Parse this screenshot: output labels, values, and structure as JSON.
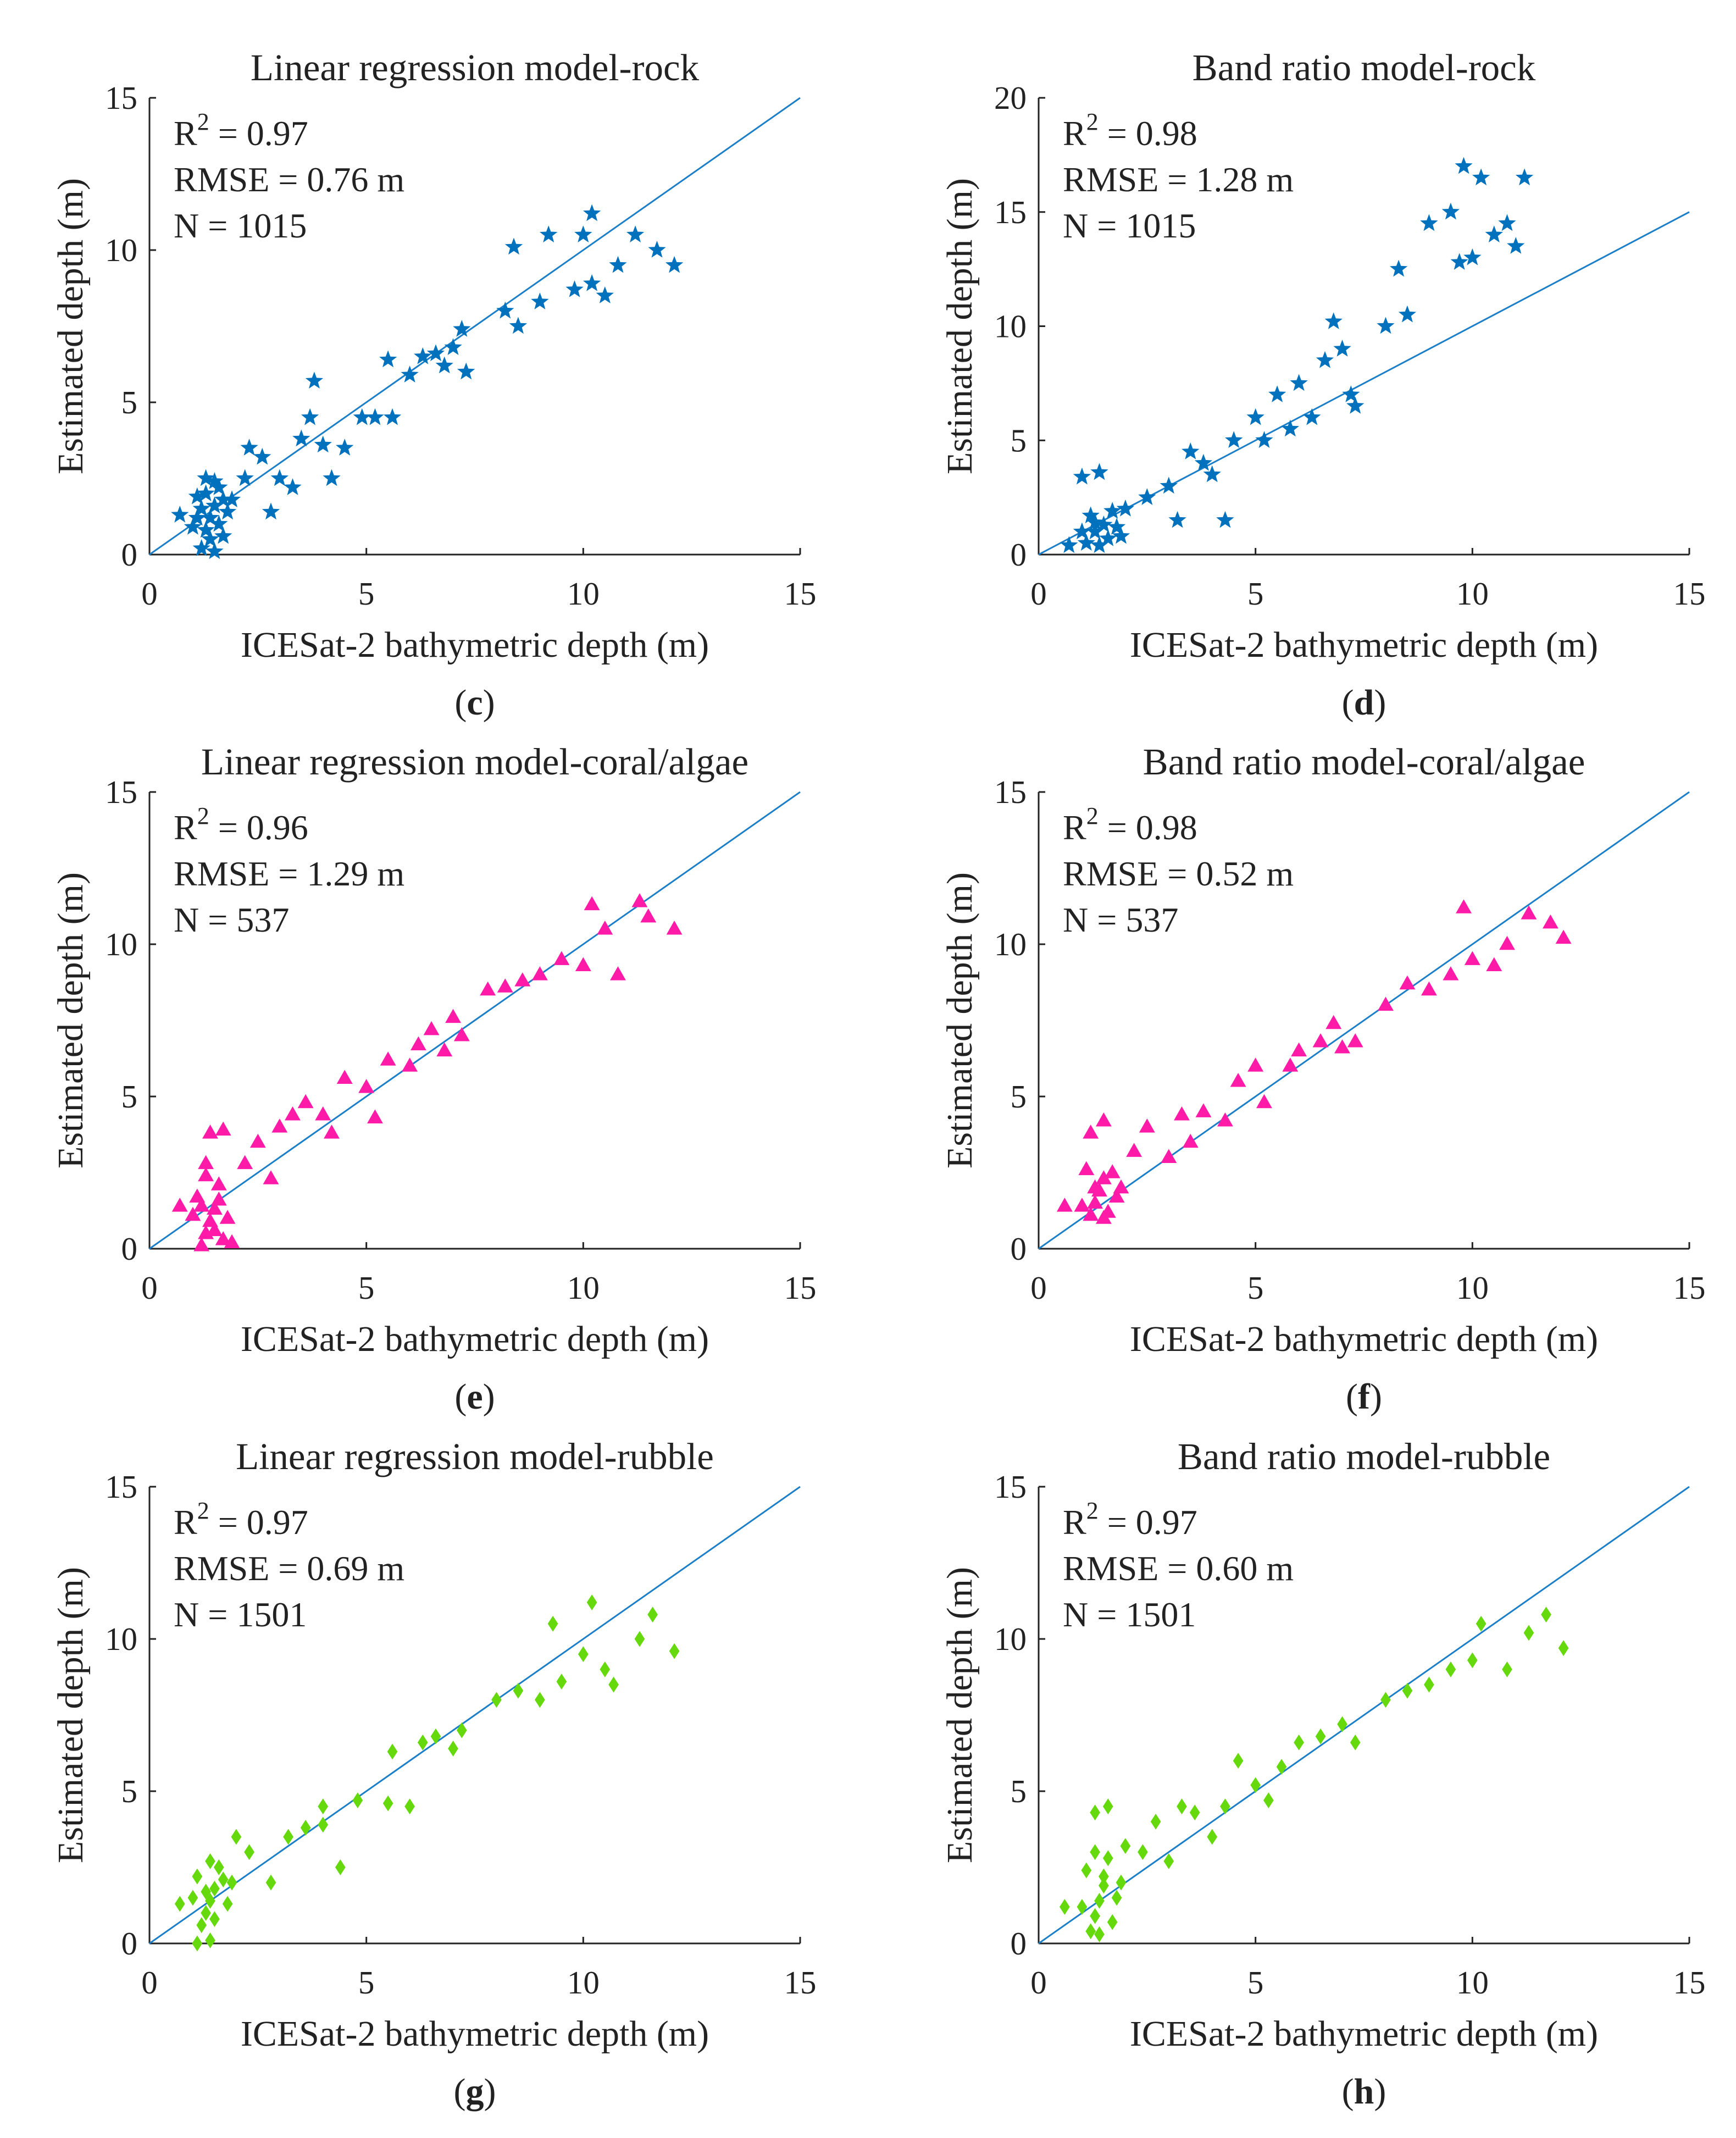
{
  "chart_data": [
    {
      "type": "scatter",
      "panel_label": "c",
      "title": "Linear regression model-rock",
      "xlabel": "ICESat-2 bathymetric depth (m)",
      "ylabel": "Estimated depth (m)",
      "xlim": [
        0,
        15
      ],
      "ylim": [
        0,
        15
      ],
      "xticks": [
        0,
        5,
        10,
        15
      ],
      "yticks": [
        0,
        5,
        10,
        15
      ],
      "stats": {
        "r2": "0.97",
        "rmse": "RMSE = 0.76 m",
        "n": "N = 1015"
      },
      "marker": "star",
      "color": "#0072BD",
      "reference_line": "1:1",
      "points": [
        [
          1.2,
          0.2
        ],
        [
          1.3,
          0.8
        ],
        [
          1.4,
          1.2
        ],
        [
          1.5,
          1.6
        ],
        [
          1.1,
          1.9
        ],
        [
          1.6,
          2.2
        ],
        [
          1.3,
          2.5
        ],
        [
          1.8,
          1.4
        ],
        [
          1.7,
          0.6
        ],
        [
          0.7,
          1.3
        ],
        [
          1.9,
          1.8
        ],
        [
          1.5,
          0.1
        ],
        [
          1.2,
          1.5
        ],
        [
          1.0,
          0.9
        ],
        [
          1.4,
          0.5
        ],
        [
          1.6,
          1.0
        ],
        [
          1.3,
          2.0
        ],
        [
          1.1,
          1.2
        ],
        [
          1.7,
          1.8
        ],
        [
          1.5,
          2.4
        ],
        [
          2.3,
          3.5
        ],
        [
          2.2,
          2.5
        ],
        [
          2.6,
          3.2
        ],
        [
          2.8,
          1.4
        ],
        [
          3.0,
          2.5
        ],
        [
          3.3,
          2.2
        ],
        [
          3.5,
          3.8
        ],
        [
          3.7,
          4.5
        ],
        [
          4.0,
          3.6
        ],
        [
          4.2,
          2.5
        ],
        [
          3.8,
          5.7
        ],
        [
          4.5,
          3.5
        ],
        [
          4.9,
          4.5
        ],
        [
          5.2,
          4.5
        ],
        [
          5.6,
          4.5
        ],
        [
          5.5,
          6.4
        ],
        [
          6.0,
          5.9
        ],
        [
          6.3,
          6.5
        ],
        [
          6.6,
          6.6
        ],
        [
          6.8,
          6.2
        ],
        [
          7.0,
          6.8
        ],
        [
          7.2,
          7.4
        ],
        [
          7.3,
          6.0
        ],
        [
          8.2,
          8.0
        ],
        [
          8.5,
          7.5
        ],
        [
          9.0,
          8.3
        ],
        [
          9.2,
          10.5
        ],
        [
          8.4,
          10.1
        ],
        [
          9.8,
          8.7
        ],
        [
          10.2,
          8.9
        ],
        [
          10.5,
          8.5
        ],
        [
          10.8,
          9.5
        ],
        [
          10.2,
          11.2
        ],
        [
          11.2,
          10.5
        ],
        [
          11.7,
          10.0
        ],
        [
          12.1,
          9.5
        ],
        [
          10.0,
          10.5
        ]
      ]
    },
    {
      "type": "scatter",
      "panel_label": "d",
      "title": "Band ratio model-rock",
      "xlabel": "ICESat-2 bathymetric depth (m)",
      "ylabel": "Estimated depth (m)",
      "xlim": [
        0,
        15
      ],
      "ylim": [
        0,
        20
      ],
      "xticks": [
        0,
        5,
        10,
        15
      ],
      "yticks": [
        0,
        5,
        10,
        15,
        20
      ],
      "stats": {
        "r2": "0.98",
        "rmse": "RMSE = 1.28 m",
        "n": "N = 1015"
      },
      "marker": "star",
      "color": "#0072BD",
      "reference_line": "1:1",
      "points": [
        [
          0.7,
          0.4
        ],
        [
          1.1,
          0.5
        ],
        [
          1.3,
          1.0
        ],
        [
          1.5,
          1.3
        ],
        [
          1.2,
          1.7
        ],
        [
          1.8,
          1.2
        ],
        [
          1.6,
          0.7
        ],
        [
          1.4,
          0.4
        ],
        [
          1.0,
          1.0
        ],
        [
          1.7,
          1.9
        ],
        [
          1.3,
          1.4
        ],
        [
          1.9,
          0.8
        ],
        [
          1.0,
          3.4
        ],
        [
          1.4,
          3.6
        ],
        [
          2.0,
          2.0
        ],
        [
          2.5,
          2.5
        ],
        [
          3.0,
          3.0
        ],
        [
          3.2,
          1.5
        ],
        [
          3.5,
          4.5
        ],
        [
          3.8,
          4.0
        ],
        [
          4.0,
          3.5
        ],
        [
          4.3,
          1.5
        ],
        [
          4.5,
          5.0
        ],
        [
          5.0,
          6.0
        ],
        [
          5.2,
          5.0
        ],
        [
          5.5,
          7.0
        ],
        [
          6.0,
          7.5
        ],
        [
          6.3,
          6.0
        ],
        [
          6.6,
          8.5
        ],
        [
          6.8,
          10.2
        ],
        [
          7.0,
          9.0
        ],
        [
          7.2,
          7.0
        ],
        [
          7.3,
          6.5
        ],
        [
          5.8,
          5.5
        ],
        [
          8.0,
          10.0
        ],
        [
          8.3,
          12.5
        ],
        [
          8.5,
          10.5
        ],
        [
          9.0,
          14.5
        ],
        [
          9.5,
          15.0
        ],
        [
          9.8,
          17.0
        ],
        [
          10.0,
          13.0
        ],
        [
          10.2,
          16.5
        ],
        [
          10.5,
          14.0
        ],
        [
          10.8,
          14.5
        ],
        [
          11.0,
          13.5
        ],
        [
          11.2,
          16.5
        ],
        [
          9.7,
          12.8
        ]
      ]
    },
    {
      "type": "scatter",
      "panel_label": "e",
      "title": "Linear regression model-coral/algae",
      "xlabel": "ICESat-2 bathymetric depth (m)",
      "ylabel": "Estimated depth (m)",
      "xlim": [
        0,
        15
      ],
      "ylim": [
        0,
        15
      ],
      "xticks": [
        0,
        5,
        10,
        15
      ],
      "yticks": [
        0,
        5,
        10,
        15
      ],
      "stats": {
        "r2": "0.96",
        "rmse": "RMSE = 1.29 m",
        "n": "N = 537"
      },
      "marker": "triangle",
      "color": "#FF1AA8",
      "reference_line": "1:1",
      "points": [
        [
          1.2,
          0.1
        ],
        [
          1.3,
          0.5
        ],
        [
          1.4,
          0.9
        ],
        [
          1.5,
          1.3
        ],
        [
          1.1,
          1.7
        ],
        [
          1.6,
          2.1
        ],
        [
          1.3,
          2.4
        ],
        [
          1.8,
          1.0
        ],
        [
          1.7,
          0.3
        ],
        [
          1.0,
          1.1
        ],
        [
          1.5,
          0.6
        ],
        [
          1.2,
          1.4
        ],
        [
          1.9,
          0.2
        ],
        [
          1.6,
          1.6
        ],
        [
          1.3,
          2.8
        ],
        [
          1.4,
          3.8
        ],
        [
          1.7,
          3.9
        ],
        [
          0.7,
          1.4
        ],
        [
          2.2,
          2.8
        ],
        [
          2.5,
          3.5
        ],
        [
          2.8,
          2.3
        ],
        [
          3.0,
          4.0
        ],
        [
          3.3,
          4.4
        ],
        [
          3.6,
          4.8
        ],
        [
          4.0,
          4.4
        ],
        [
          4.2,
          3.8
        ],
        [
          4.5,
          5.6
        ],
        [
          5.0,
          5.3
        ],
        [
          5.2,
          4.3
        ],
        [
          5.5,
          6.2
        ],
        [
          6.0,
          6.0
        ],
        [
          6.2,
          6.7
        ],
        [
          6.5,
          7.2
        ],
        [
          6.8,
          6.5
        ],
        [
          7.0,
          7.6
        ],
        [
          7.2,
          7.0
        ],
        [
          7.8,
          8.5
        ],
        [
          8.2,
          8.6
        ],
        [
          8.6,
          8.8
        ],
        [
          9.0,
          9.0
        ],
        [
          9.5,
          9.5
        ],
        [
          10.0,
          9.3
        ],
        [
          10.5,
          10.5
        ],
        [
          10.8,
          9.0
        ],
        [
          10.2,
          11.3
        ],
        [
          11.3,
          11.4
        ],
        [
          11.5,
          10.9
        ],
        [
          12.1,
          10.5
        ]
      ]
    },
    {
      "type": "scatter",
      "panel_label": "f",
      "title": "Band ratio model-coral/algae",
      "xlabel": "ICESat-2 bathymetric depth (m)",
      "ylabel": "Estimated depth (m)",
      "xlim": [
        0,
        15
      ],
      "ylim": [
        0,
        15
      ],
      "xticks": [
        0,
        5,
        10,
        15
      ],
      "yticks": [
        0,
        5,
        10,
        15
      ],
      "stats": {
        "r2": "0.98",
        "rmse": "RMSE = 0.52 m",
        "n": "N = 537"
      },
      "marker": "triangle",
      "color": "#FF1AA8",
      "reference_line": "1:1",
      "points": [
        [
          1.2,
          1.1
        ],
        [
          1.3,
          1.5
        ],
        [
          1.4,
          1.9
        ],
        [
          1.5,
          2.3
        ],
        [
          1.1,
          2.6
        ],
        [
          1.6,
          1.2
        ],
        [
          1.3,
          2.0
        ],
        [
          1.8,
          1.7
        ],
        [
          1.7,
          2.5
        ],
        [
          1.0,
          1.4
        ],
        [
          1.5,
          1.0
        ],
        [
          1.9,
          2.0
        ],
        [
          1.2,
          3.8
        ],
        [
          1.5,
          4.2
        ],
        [
          0.6,
          1.4
        ],
        [
          2.2,
          3.2
        ],
        [
          2.5,
          4.0
        ],
        [
          3.0,
          3.0
        ],
        [
          3.3,
          4.4
        ],
        [
          3.5,
          3.5
        ],
        [
          3.8,
          4.5
        ],
        [
          4.3,
          4.2
        ],
        [
          4.6,
          5.5
        ],
        [
          5.0,
          6.0
        ],
        [
          5.2,
          4.8
        ],
        [
          5.8,
          6.0
        ],
        [
          6.0,
          6.5
        ],
        [
          6.5,
          6.8
        ],
        [
          6.8,
          7.4
        ],
        [
          7.0,
          6.6
        ],
        [
          7.3,
          6.8
        ],
        [
          8.0,
          8.0
        ],
        [
          8.5,
          8.7
        ],
        [
          9.0,
          8.5
        ],
        [
          9.5,
          9.0
        ],
        [
          9.8,
          11.2
        ],
        [
          10.0,
          9.5
        ],
        [
          10.5,
          9.3
        ],
        [
          10.8,
          10.0
        ],
        [
          11.3,
          11.0
        ],
        [
          11.8,
          10.7
        ],
        [
          12.1,
          10.2
        ]
      ]
    },
    {
      "type": "scatter",
      "panel_label": "g",
      "title": "Linear regression model-rubble",
      "xlabel": "ICESat-2 bathymetric depth (m)",
      "ylabel": "Estimated depth (m)",
      "xlim": [
        0,
        15
      ],
      "ylim": [
        0,
        15
      ],
      "xticks": [
        0,
        5,
        10,
        15
      ],
      "yticks": [
        0,
        5,
        10,
        15
      ],
      "stats": {
        "r2": "0.97",
        "rmse": "RMSE = 0.69 m",
        "n": "N = 1501"
      },
      "marker": "diamond",
      "color": "#66D90C",
      "reference_line": "1:1",
      "points": [
        [
          1.2,
          0.6
        ],
        [
          1.3,
          1.0
        ],
        [
          1.4,
          1.4
        ],
        [
          1.5,
          1.8
        ],
        [
          1.1,
          2.2
        ],
        [
          1.6,
          2.5
        ],
        [
          1.3,
          1.7
        ],
        [
          1.8,
          1.3
        ],
        [
          1.7,
          2.1
        ],
        [
          1.0,
          1.5
        ],
        [
          1.5,
          0.8
        ],
        [
          1.9,
          2.0
        ],
        [
          1.4,
          2.7
        ],
        [
          1.1,
          0.0
        ],
        [
          1.4,
          0.1
        ],
        [
          0.7,
          1.3
        ],
        [
          2.0,
          3.5
        ],
        [
          2.3,
          3.0
        ],
        [
          2.8,
          2.0
        ],
        [
          3.2,
          3.5
        ],
        [
          3.6,
          3.8
        ],
        [
          4.0,
          3.9
        ],
        [
          4.4,
          2.5
        ],
        [
          4.0,
          4.5
        ],
        [
          4.8,
          4.7
        ],
        [
          5.5,
          4.6
        ],
        [
          6.0,
          4.5
        ],
        [
          5.6,
          6.3
        ],
        [
          6.3,
          6.6
        ],
        [
          6.6,
          6.8
        ],
        [
          7.0,
          6.4
        ],
        [
          7.2,
          7.0
        ],
        [
          8.0,
          8.0
        ],
        [
          8.5,
          8.3
        ],
        [
          9.0,
          8.0
        ],
        [
          9.5,
          8.6
        ],
        [
          10.0,
          9.5
        ],
        [
          10.2,
          11.2
        ],
        [
          10.5,
          9.0
        ],
        [
          11.3,
          10.0
        ],
        [
          11.6,
          10.8
        ],
        [
          12.1,
          9.6
        ],
        [
          9.3,
          10.5
        ],
        [
          10.7,
          8.5
        ]
      ]
    },
    {
      "type": "scatter",
      "panel_label": "h",
      "title": "Band ratio model-rubble",
      "xlabel": "ICESat-2 bathymetric depth (m)",
      "ylabel": "Estimated depth (m)",
      "xlim": [
        0,
        15
      ],
      "ylim": [
        0,
        15
      ],
      "xticks": [
        0,
        5,
        10,
        15
      ],
      "yticks": [
        0,
        5,
        10,
        15
      ],
      "stats": {
        "r2": "0.97",
        "rmse": "RMSE = 0.60 m",
        "n": "N = 1501"
      },
      "marker": "diamond",
      "color": "#66D90C",
      "reference_line": "1:1",
      "points": [
        [
          1.2,
          0.4
        ],
        [
          1.3,
          0.9
        ],
        [
          1.4,
          1.4
        ],
        [
          1.5,
          1.9
        ],
        [
          1.1,
          2.4
        ],
        [
          1.6,
          2.8
        ],
        [
          1.3,
          3.0
        ],
        [
          1.8,
          1.5
        ],
        [
          1.7,
          0.7
        ],
        [
          1.0,
          1.2
        ],
        [
          1.5,
          2.2
        ],
        [
          1.9,
          2.0
        ],
        [
          1.4,
          0.3
        ],
        [
          1.3,
          4.3
        ],
        [
          1.6,
          4.5
        ],
        [
          0.6,
          1.2
        ],
        [
          2.0,
          3.2
        ],
        [
          2.4,
          3.0
        ],
        [
          2.7,
          4.0
        ],
        [
          3.0,
          2.7
        ],
        [
          3.3,
          4.5
        ],
        [
          3.6,
          4.3
        ],
        [
          4.0,
          3.5
        ],
        [
          4.3,
          4.5
        ],
        [
          4.6,
          6.0
        ],
        [
          5.0,
          5.2
        ],
        [
          5.3,
          4.7
        ],
        [
          5.6,
          5.8
        ],
        [
          6.0,
          6.6
        ],
        [
          6.5,
          6.8
        ],
        [
          7.0,
          7.2
        ],
        [
          7.3,
          6.6
        ],
        [
          8.0,
          8.0
        ],
        [
          8.5,
          8.3
        ],
        [
          9.0,
          8.5
        ],
        [
          9.5,
          9.0
        ],
        [
          10.0,
          9.3
        ],
        [
          10.2,
          10.5
        ],
        [
          10.8,
          9.0
        ],
        [
          11.3,
          10.2
        ],
        [
          11.7,
          10.8
        ],
        [
          12.1,
          9.7
        ]
      ]
    }
  ]
}
